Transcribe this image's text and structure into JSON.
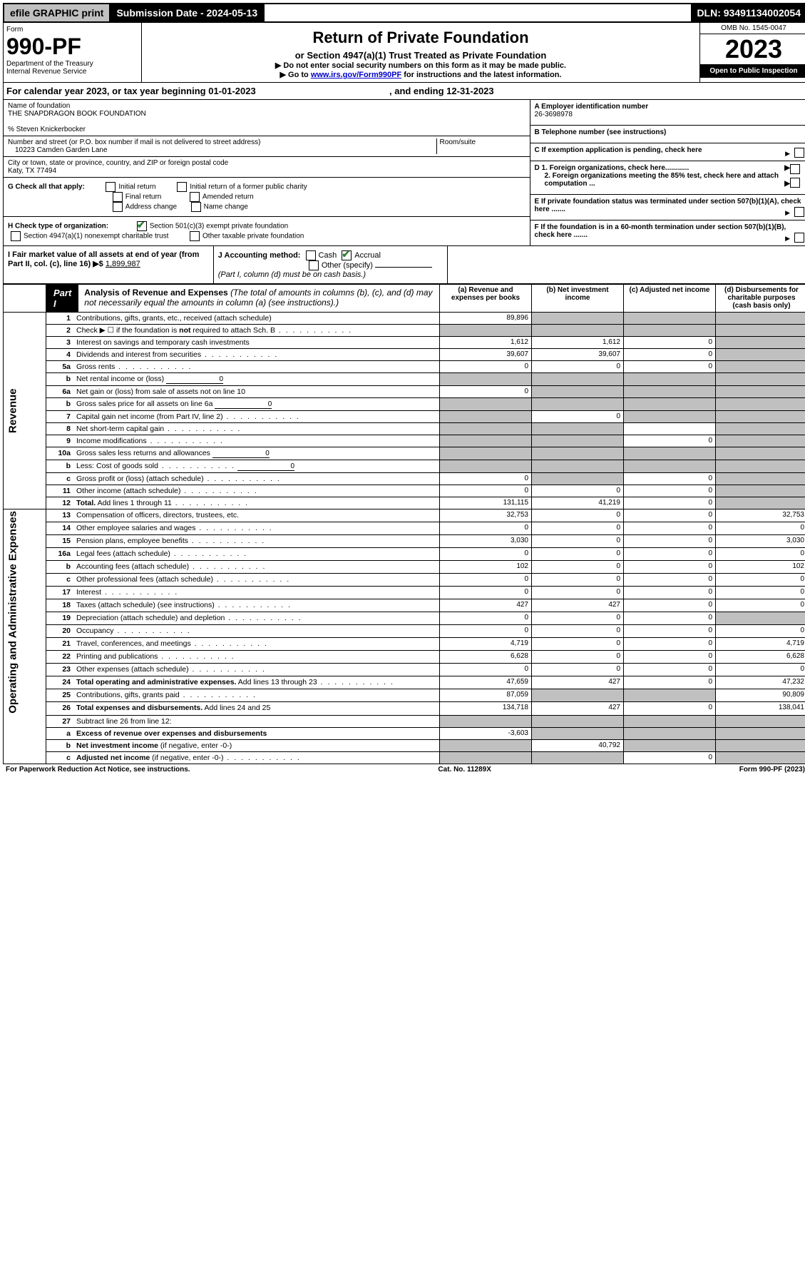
{
  "topbar": {
    "efile": "efile GRAPHIC print",
    "subdate_label": "Submission Date - ",
    "subdate_val": "2024-05-13",
    "dln_label": "DLN: ",
    "dln_val": "93491134002054"
  },
  "header": {
    "form": "Form",
    "form_no": "990-PF",
    "dept": "Department of the Treasury",
    "irs": "Internal Revenue Service",
    "title": "Return of Private Foundation",
    "subtitle": "or Section 4947(a)(1) Trust Treated as Private Foundation",
    "note1": "▶ Do not enter social security numbers on this form as it may be made public.",
    "note2_pre": "▶ Go to ",
    "note2_link": "www.irs.gov/Form990PF",
    "note2_post": " for instructions and the latest information.",
    "omb": "OMB No. 1545-0047",
    "year": "2023",
    "open": "Open to Public Inspection"
  },
  "calyear": {
    "text": "For calendar year 2023, or tax year beginning 01-01-2023",
    "ending": ", and ending 12-31-2023"
  },
  "info": {
    "name_label": "Name of foundation",
    "name": "THE SNAPDRAGON BOOK FOUNDATION",
    "care_of": "% Steven Knickerbocker",
    "addr_label": "Number and street (or P.O. box number if mail is not delivered to street address)",
    "addr": "10223 Camden Garden Lane",
    "room_label": "Room/suite",
    "city_label": "City or town, state or province, country, and ZIP or foreign postal code",
    "city": "Katy, TX  77494",
    "ein_label": "A Employer identification number",
    "ein": "26-3698978",
    "tel_label": "B Telephone number (see instructions)",
    "c_label": "C If exemption application is pending, check here",
    "d1": "D 1. Foreign organizations, check here............",
    "d2": "2. Foreign organizations meeting the 85% test, check here and attach computation ...",
    "e_label": "E   If private foundation status was terminated under section 507(b)(1)(A), check here .......",
    "f_label": "F   If the foundation is in a 60-month termination under section 507(b)(1)(B), check here .......",
    "g_label": "G Check all that apply:",
    "g_opts": [
      "Initial return",
      "Initial return of a former public charity",
      "Final return",
      "Amended return",
      "Address change",
      "Name change"
    ],
    "h_label": "H Check type of organization:",
    "h1": "Section 501(c)(3) exempt private foundation",
    "h2": "Section 4947(a)(1) nonexempt charitable trust",
    "h3": "Other taxable private foundation",
    "i_label": "I Fair market value of all assets at end of year (from Part II, col. (c), line 16) ▶$ ",
    "i_val": "1,899,987",
    "j_label": "J Accounting method:",
    "j_cash": "Cash",
    "j_accrual": "Accrual",
    "j_other": "Other (specify)",
    "j_note": "(Part I, column (d) must be on cash basis.)"
  },
  "part1": {
    "tab": "Part I",
    "title": "Analysis of Revenue and Expenses",
    "title_note": "(The total of amounts in columns (b), (c), and (d) may not necessarily equal the amounts in column (a) (see instructions).)",
    "col_a": "(a)   Revenue and expenses per books",
    "col_b": "(b)   Net investment income",
    "col_c": "(c)   Adjusted net income",
    "col_d": "(d)   Disbursements for charitable purposes (cash basis only)"
  },
  "sections": {
    "revenue": "Revenue",
    "expenses": "Operating and Administrative Expenses"
  },
  "rows": [
    {
      "sec": "R",
      "no": "1",
      "desc": "Contributions, gifts, grants, etc., received (attach schedule)",
      "a": "89,896",
      "b": "",
      "c": "",
      "d": "",
      "shade_b": true,
      "shade_c": true,
      "shade_d": true
    },
    {
      "sec": "R",
      "no": "2",
      "desc": "Check ▶ ☐ if the foundation is <b>not</b> required to attach Sch. B",
      "a": "",
      "b": "",
      "c": "",
      "d": "",
      "dots": true,
      "shade_a": true,
      "shade_b": true,
      "shade_c": true,
      "shade_d": true
    },
    {
      "sec": "R",
      "no": "3",
      "desc": "Interest on savings and temporary cash investments",
      "a": "1,612",
      "b": "1,612",
      "c": "0",
      "d": "",
      "shade_d": true
    },
    {
      "sec": "R",
      "no": "4",
      "desc": "Dividends and interest from securities",
      "a": "39,607",
      "b": "39,607",
      "c": "0",
      "d": "",
      "dots": true,
      "shade_d": true
    },
    {
      "sec": "R",
      "no": "5a",
      "desc": "Gross rents",
      "a": "0",
      "b": "0",
      "c": "0",
      "d": "",
      "dots": true,
      "shade_d": true
    },
    {
      "sec": "R",
      "no": "b",
      "desc": "Net rental income or (loss)",
      "inline": "0",
      "a": "",
      "b": "",
      "c": "",
      "d": "",
      "shade_a": true,
      "shade_b": true,
      "shade_c": true,
      "shade_d": true
    },
    {
      "sec": "R",
      "no": "6a",
      "desc": "Net gain or (loss) from sale of assets not on line 10",
      "a": "0",
      "b": "",
      "c": "",
      "d": "",
      "shade_b": true,
      "shade_c": true,
      "shade_d": true
    },
    {
      "sec": "R",
      "no": "b",
      "desc": "Gross sales price for all assets on line 6a",
      "inline": "0",
      "a": "",
      "b": "",
      "c": "",
      "d": "",
      "shade_a": true,
      "shade_b": true,
      "shade_c": true,
      "shade_d": true
    },
    {
      "sec": "R",
      "no": "7",
      "desc": "Capital gain net income (from Part IV, line 2)",
      "a": "",
      "b": "0",
      "c": "",
      "d": "",
      "dots": true,
      "shade_a": true,
      "shade_c": true,
      "shade_d": true
    },
    {
      "sec": "R",
      "no": "8",
      "desc": "Net short-term capital gain",
      "a": "",
      "b": "",
      "c": "",
      "d": "",
      "dots": true,
      "shade_a": true,
      "shade_b": true,
      "shade_d": true
    },
    {
      "sec": "R",
      "no": "9",
      "desc": "Income modifications",
      "a": "",
      "b": "",
      "c": "0",
      "d": "",
      "dots": true,
      "shade_a": true,
      "shade_b": true,
      "shade_d": true
    },
    {
      "sec": "R",
      "no": "10a",
      "desc": "Gross sales less returns and allowances",
      "inline": "0",
      "a": "",
      "b": "",
      "c": "",
      "d": "",
      "shade_a": true,
      "shade_b": true,
      "shade_c": true,
      "shade_d": true
    },
    {
      "sec": "R",
      "no": "b",
      "desc": "Less: Cost of goods sold",
      "inline": "0",
      "a": "",
      "b": "",
      "c": "",
      "d": "",
      "dots": true,
      "shade_a": true,
      "shade_b": true,
      "shade_c": true,
      "shade_d": true
    },
    {
      "sec": "R",
      "no": "c",
      "desc": "Gross profit or (loss) (attach schedule)",
      "a": "0",
      "b": "",
      "c": "0",
      "d": "",
      "dots": true,
      "shade_b": true,
      "shade_d": true
    },
    {
      "sec": "R",
      "no": "11",
      "desc": "Other income (attach schedule)",
      "a": "0",
      "b": "0",
      "c": "0",
      "d": "",
      "dots": true,
      "shade_d": true
    },
    {
      "sec": "R",
      "no": "12",
      "desc": "<b>Total.</b> Add lines 1 through 11",
      "a": "131,115",
      "b": "41,219",
      "c": "0",
      "d": "",
      "dots": true,
      "shade_d": true
    },
    {
      "sec": "E",
      "no": "13",
      "desc": "Compensation of officers, directors, trustees, etc.",
      "a": "32,753",
      "b": "0",
      "c": "0",
      "d": "32,753"
    },
    {
      "sec": "E",
      "no": "14",
      "desc": "Other employee salaries and wages",
      "a": "0",
      "b": "0",
      "c": "0",
      "d": "0",
      "dots": true
    },
    {
      "sec": "E",
      "no": "15",
      "desc": "Pension plans, employee benefits",
      "a": "3,030",
      "b": "0",
      "c": "0",
      "d": "3,030",
      "dots": true
    },
    {
      "sec": "E",
      "no": "16a",
      "desc": "Legal fees (attach schedule)",
      "a": "0",
      "b": "0",
      "c": "0",
      "d": "0",
      "dots": true
    },
    {
      "sec": "E",
      "no": "b",
      "desc": "Accounting fees (attach schedule)",
      "a": "102",
      "b": "0",
      "c": "0",
      "d": "102",
      "dots": true
    },
    {
      "sec": "E",
      "no": "c",
      "desc": "Other professional fees (attach schedule)",
      "a": "0",
      "b": "0",
      "c": "0",
      "d": "0",
      "dots": true
    },
    {
      "sec": "E",
      "no": "17",
      "desc": "Interest",
      "a": "0",
      "b": "0",
      "c": "0",
      "d": "0",
      "dots": true
    },
    {
      "sec": "E",
      "no": "18",
      "desc": "Taxes (attach schedule) (see instructions)",
      "a": "427",
      "b": "427",
      "c": "0",
      "d": "0",
      "dots": true
    },
    {
      "sec": "E",
      "no": "19",
      "desc": "Depreciation (attach schedule) and depletion",
      "a": "0",
      "b": "0",
      "c": "0",
      "d": "",
      "dots": true,
      "shade_d": true
    },
    {
      "sec": "E",
      "no": "20",
      "desc": "Occupancy",
      "a": "0",
      "b": "0",
      "c": "0",
      "d": "0",
      "dots": true
    },
    {
      "sec": "E",
      "no": "21",
      "desc": "Travel, conferences, and meetings",
      "a": "4,719",
      "b": "0",
      "c": "0",
      "d": "4,719",
      "dots": true
    },
    {
      "sec": "E",
      "no": "22",
      "desc": "Printing and publications",
      "a": "6,628",
      "b": "0",
      "c": "0",
      "d": "6,628",
      "dots": true
    },
    {
      "sec": "E",
      "no": "23",
      "desc": "Other expenses (attach schedule)",
      "a": "0",
      "b": "0",
      "c": "0",
      "d": "0",
      "dots": true
    },
    {
      "sec": "E",
      "no": "24",
      "desc": "<b>Total operating and administrative expenses.</b> Add lines 13 through 23",
      "a": "47,659",
      "b": "427",
      "c": "0",
      "d": "47,232",
      "dots": true
    },
    {
      "sec": "E",
      "no": "25",
      "desc": "Contributions, gifts, grants paid",
      "a": "87,059",
      "b": "",
      "c": "",
      "d": "90,809",
      "dots": true,
      "shade_b": true,
      "shade_c": true
    },
    {
      "sec": "E",
      "no": "26",
      "desc": "<b>Total expenses and disbursements.</b> Add lines 24 and 25",
      "a": "134,718",
      "b": "427",
      "c": "0",
      "d": "138,041"
    },
    {
      "sec": "",
      "no": "27",
      "desc": "Subtract line 26 from line 12:",
      "a": "",
      "b": "",
      "c": "",
      "d": "",
      "shade_a": true,
      "shade_b": true,
      "shade_c": true,
      "shade_d": true
    },
    {
      "sec": "",
      "no": "a",
      "desc": "<b>Excess of revenue over expenses and disbursements</b>",
      "a": "-3,603",
      "b": "",
      "c": "",
      "d": "",
      "shade_b": true,
      "shade_c": true,
      "shade_d": true
    },
    {
      "sec": "",
      "no": "b",
      "desc": "<b>Net investment income</b> (if negative, enter -0-)",
      "a": "",
      "b": "40,792",
      "c": "",
      "d": "",
      "shade_a": true,
      "shade_c": true,
      "shade_d": true
    },
    {
      "sec": "",
      "no": "c",
      "desc": "<b>Adjusted net income</b> (if negative, enter -0-)",
      "a": "",
      "b": "",
      "c": "0",
      "d": "",
      "dots": true,
      "shade_a": true,
      "shade_b": true,
      "shade_d": true
    }
  ],
  "footer": {
    "left": "For Paperwork Reduction Act Notice, see instructions.",
    "mid": "Cat. No. 11289X",
    "right": "Form 990-PF (2023)"
  }
}
